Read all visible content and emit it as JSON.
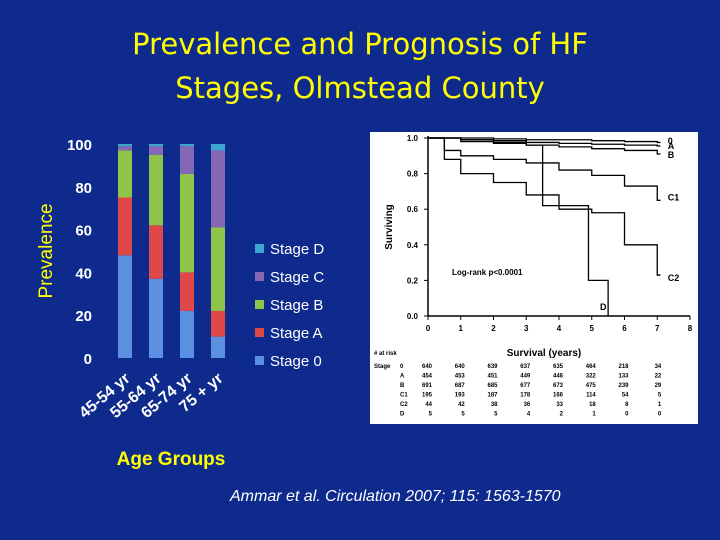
{
  "slide": {
    "title_line1": "Prevalence and Prognosis of HF",
    "title_line2": "Stages, Olmstead County",
    "citation": "Ammar et al. Circulation 2007; 115: 1563-1570"
  },
  "colors": {
    "background": "#0e2a8c",
    "title": "#ffff00",
    "axis_text": "#ffffff",
    "xlabel": "#ffff00",
    "ylabel": "#ffff00"
  },
  "chart_data": [
    {
      "type": "bar",
      "stacked": true,
      "percent_stacked": true,
      "ylabel": "Prevalence",
      "xlabel": "Age Groups",
      "ylim": [
        0,
        100
      ],
      "yticks": [
        0,
        20,
        40,
        60,
        80,
        100
      ],
      "categories": [
        "45-54 yr",
        "55-64 yr",
        "65-74 yr",
        "75 + yr"
      ],
      "series": [
        {
          "name": "Stage 0",
          "color": "#5b8fe0",
          "values": [
            48,
            37,
            22,
            10
          ]
        },
        {
          "name": "Stage A",
          "color": "#e04848",
          "values": [
            27,
            25,
            18,
            12
          ]
        },
        {
          "name": "Stage B",
          "color": "#8fc44a",
          "values": [
            22,
            33,
            46,
            39
          ]
        },
        {
          "name": "Stage C",
          "color": "#8468b6",
          "values": [
            2,
            4,
            13,
            36
          ]
        },
        {
          "name": "Stage D",
          "color": "#3ba7d0",
          "values": [
            1,
            1,
            1,
            3
          ]
        }
      ],
      "legend": {
        "placement": "right",
        "order": [
          "Stage D",
          "Stage C",
          "Stage B",
          "Stage A",
          "Stage 0"
        ]
      }
    },
    {
      "type": "line",
      "step": true,
      "ylabel": "Surviving",
      "xlabel": "Survival (years)",
      "ylim": [
        0,
        1.0
      ],
      "xlim": [
        0,
        8
      ],
      "yticks": [
        "0.0",
        "0.2",
        "0.4",
        "0.6",
        "0.8",
        "1.0"
      ],
      "xticks": [
        0,
        1,
        2,
        3,
        4,
        5,
        6,
        7,
        8
      ],
      "annotation": "Log-rank p<0.0001",
      "series": [
        {
          "name": "0",
          "label_y": 0.99,
          "x": [
            0,
            1,
            2,
            3,
            4,
            5,
            6,
            7
          ],
          "y": [
            1.0,
            1.0,
            0.995,
            0.99,
            0.99,
            0.985,
            0.98,
            0.975
          ]
        },
        {
          "name": "A",
          "label_y": 0.96,
          "x": [
            0,
            1,
            2,
            3,
            4,
            5,
            6,
            7
          ],
          "y": [
            1.0,
            0.99,
            0.985,
            0.975,
            0.97,
            0.965,
            0.96,
            0.955
          ]
        },
        {
          "name": "B",
          "label_y": 0.91,
          "x": [
            0,
            1,
            2,
            3,
            4,
            5,
            6,
            7
          ],
          "y": [
            1.0,
            0.99,
            0.975,
            0.96,
            0.95,
            0.94,
            0.93,
            0.91
          ]
        },
        {
          "name": "C1",
          "label_y": 0.67,
          "x": [
            0,
            0.5,
            1,
            2,
            3,
            4,
            5,
            6,
            7
          ],
          "y": [
            1.0,
            0.93,
            0.9,
            0.88,
            0.86,
            0.82,
            0.79,
            0.73,
            0.65
          ]
        },
        {
          "name": "C2",
          "label_y": 0.22,
          "x": [
            0,
            0.5,
            1,
            2,
            3,
            4,
            5,
            6,
            7
          ],
          "y": [
            1.0,
            0.88,
            0.8,
            0.75,
            0.68,
            0.6,
            0.58,
            0.4,
            0.23
          ]
        },
        {
          "name": "D",
          "label_y": 0.05,
          "x": [
            0,
            1,
            2,
            3,
            3.5,
            4,
            4.9,
            5,
            5.5
          ],
          "y": [
            1.0,
            0.98,
            0.97,
            0.96,
            0.62,
            0.62,
            0.2,
            0.2,
            0.0
          ]
        }
      ],
      "at_risk": {
        "header": "# at risk",
        "stage_header": "Stage",
        "rows": [
          {
            "stage": "0",
            "counts": [
              640,
              640,
              639,
              637,
              635,
              464,
              218,
              34
            ]
          },
          {
            "stage": "A",
            "counts": [
              454,
              453,
              451,
              449,
              446,
              322,
              133,
              22
            ]
          },
          {
            "stage": "B",
            "counts": [
              691,
              687,
              685,
              677,
              673,
              475,
              239,
              29
            ]
          },
          {
            "stage": "C1",
            "counts": [
              195,
              193,
              187,
              178,
              166,
              114,
              54,
              5
            ]
          },
          {
            "stage": "C2",
            "counts": [
              44,
              42,
              38,
              36,
              33,
              18,
              8,
              1
            ]
          },
          {
            "stage": "D",
            "counts": [
              5,
              5,
              5,
              4,
              2,
              1,
              0,
              0
            ]
          }
        ]
      }
    }
  ]
}
